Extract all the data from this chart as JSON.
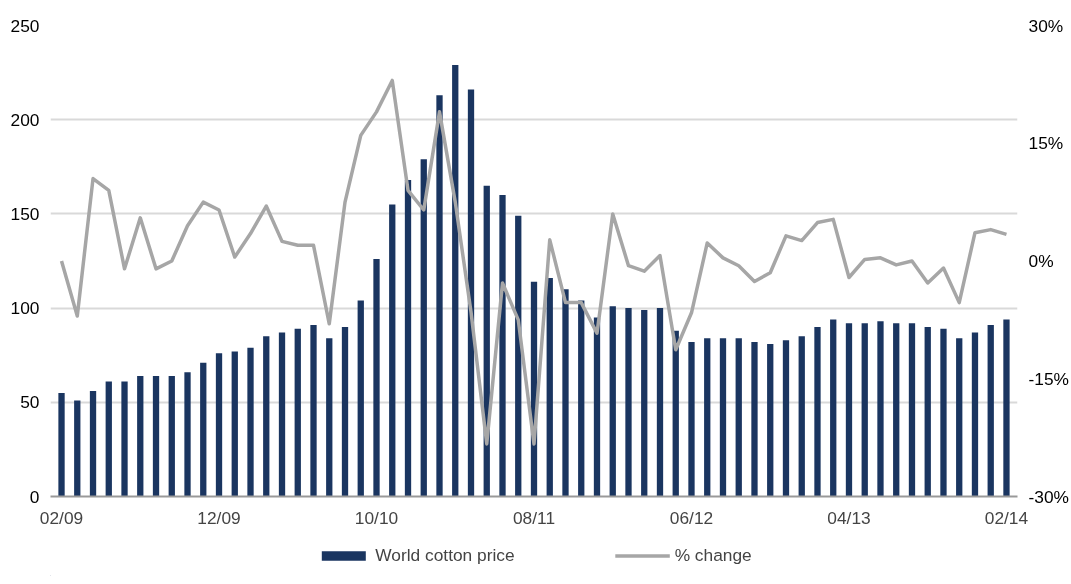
{
  "chart_data": {
    "type": "bar",
    "categories": [
      "02/09",
      null,
      null,
      null,
      null,
      null,
      null,
      null,
      null,
      null,
      "12/09",
      null,
      null,
      null,
      null,
      null,
      null,
      null,
      null,
      null,
      "10/10",
      null,
      null,
      null,
      null,
      null,
      null,
      null,
      null,
      null,
      "08/11",
      null,
      null,
      null,
      null,
      null,
      null,
      null,
      null,
      null,
      "06/12",
      null,
      null,
      null,
      null,
      null,
      null,
      null,
      null,
      null,
      "04/13",
      null,
      null,
      null,
      null,
      null,
      null,
      null,
      null,
      null,
      "02/14"
    ],
    "series": [
      {
        "name": "World cotton price",
        "color": "#1a3560",
        "values": [
          55,
          51,
          56,
          61,
          61,
          64,
          64,
          64,
          66,
          71,
          76,
          77,
          79,
          85,
          87,
          89,
          91,
          84,
          90,
          104,
          126,
          155,
          168,
          179,
          213,
          229,
          216,
          165,
          160,
          149,
          114,
          116,
          110,
          104,
          95,
          101,
          100,
          99,
          100,
          88,
          82,
          84,
          84,
          84,
          82,
          81,
          83,
          85,
          90,
          94,
          92,
          92,
          93,
          92,
          92,
          90,
          89,
          84,
          87,
          91,
          94
        ]
      },
      {
        "name": "% change",
        "type": "line",
        "axis": "y2",
        "color": "#a6a6a6",
        "values": [
          0,
          -7,
          10.5,
          9,
          -1,
          5.5,
          -1,
          0,
          4.5,
          7.5,
          6.5,
          0.5,
          3.5,
          7,
          2.5,
          2,
          2,
          -8,
          7.5,
          16,
          19,
          23,
          9,
          6.5,
          19,
          7.5,
          -6.5,
          -23.3,
          -2.8,
          -7.5,
          -23.3,
          2.7,
          -5.3,
          -5.3,
          -9.2,
          6,
          -0.6,
          -1.3,
          0.7,
          -11.3,
          -6.6,
          2.3,
          0.4,
          -0.6,
          -2.6,
          -1.5,
          3.2,
          2.6,
          4.9,
          5.3,
          -2.1,
          0.2,
          0.4,
          -0.5,
          0,
          -2.8,
          -0.9,
          -5.3,
          3.6,
          4,
          3.4
        ]
      }
    ],
    "ylim": [
      0,
      250
    ],
    "yticks": [
      0,
      50,
      100,
      150,
      200,
      250
    ],
    "y2lim": [
      -30,
      30
    ],
    "y2ticks": [
      {
        "value": -30,
        "label": "-30%"
      },
      {
        "value": -15,
        "label": "-15%"
      },
      {
        "value": 0,
        "label": "0%"
      },
      {
        "value": 15,
        "label": "15%"
      },
      {
        "value": 30,
        "label": "30%"
      }
    ],
    "grid": "y",
    "legend": "bottom"
  }
}
